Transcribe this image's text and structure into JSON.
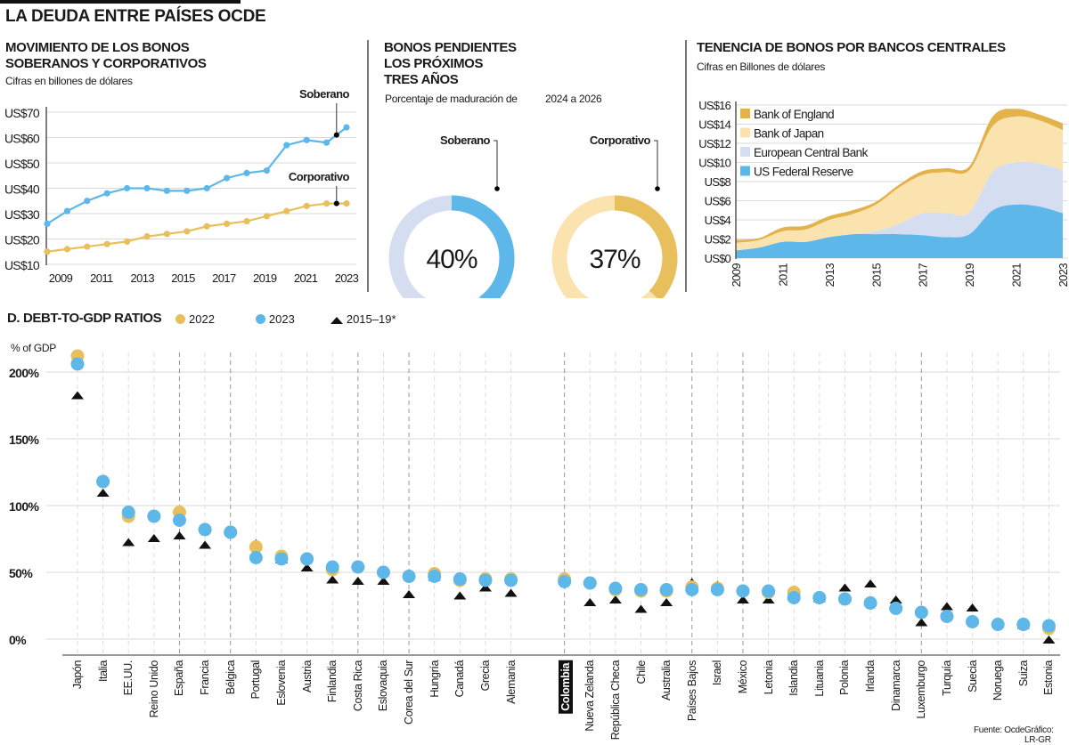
{
  "title": "LA DEUDA ENTRE PAÍSES OCDE",
  "colors": {
    "blue": "#5db7e8",
    "yellow": "#e8bf5c",
    "light_yellow": "#fbe3b0",
    "lavender": "#d5ddf0",
    "boe": "#e3b24a",
    "grid": "#d9d9d9",
    "text": "#1a1a1a"
  },
  "panel_a": {
    "title_line1": "MOVIMIENTO DE LOS BONOS",
    "title_line2": "SOBERANOS Y CORPORATIVOS",
    "subtitle": "Cifras en billones de dólares"
  },
  "panel_b": {
    "title_line1": "BONOS PENDIENTES",
    "title_line2": "LOS PRÓXIMOS",
    "title_line3": "TRES AÑOS",
    "subtitle_left": "Porcentaje de maduración de",
    "subtitle_right": "2024 a 2026"
  },
  "panel_c": {
    "title": "TENENCIA DE BONOS POR BANCOS CENTRALES",
    "subtitle": "Cifras en Billones de dólares"
  },
  "panel_d": {
    "title": "D. DEBT-TO-GDP RATIOS"
  },
  "footer": {
    "source": "Fuente: Ocde",
    "credit": "Gráfico: LR-GR"
  },
  "chart_data": [
    {
      "type": "line",
      "x": [
        2008,
        2009,
        2010,
        2011,
        2012,
        2013,
        2014,
        2015,
        2016,
        2017,
        2018,
        2019,
        2020,
        2021,
        2022,
        2023
      ],
      "series": [
        {
          "name": "Soberano",
          "values": [
            26,
            31,
            35,
            38,
            40,
            40,
            39,
            39,
            40,
            44,
            46,
            47,
            57,
            59,
            58,
            64
          ]
        },
        {
          "name": "Corporativo",
          "values": [
            15,
            16,
            17,
            18,
            19,
            21,
            22,
            23,
            25,
            26,
            27,
            29,
            31,
            33,
            34,
            34
          ]
        }
      ],
      "ylim": [
        10,
        70
      ],
      "ytick_labels": [
        "US$10",
        "US$20",
        "US$30",
        "US$40",
        "US$50",
        "US$60",
        "US$70"
      ],
      "xtick_labels": [
        "2009",
        "2011",
        "2013",
        "2015",
        "2017",
        "2019",
        "2021",
        "2023"
      ],
      "grid": true
    },
    {
      "type": "pie",
      "label": "Soberano",
      "value_label": "40%",
      "values": [
        40,
        60
      ]
    },
    {
      "type": "pie",
      "label": "Corporativo",
      "value_label": "37%",
      "values": [
        37,
        63
      ]
    },
    {
      "type": "area",
      "stacked": true,
      "x": [
        2009,
        2010,
        2011,
        2012,
        2013,
        2014,
        2015,
        2016,
        2017,
        2018,
        2019,
        2020,
        2021,
        2022,
        2023
      ],
      "series": [
        {
          "name": "US Federal Reserve",
          "values": [
            0.8,
            1.1,
            1.7,
            1.7,
            2.2,
            2.5,
            2.5,
            2.5,
            2.4,
            2.2,
            2.5,
            5.0,
            5.6,
            5.4,
            4.7
          ]
        },
        {
          "name": "European Central Bank",
          "values": [
            0,
            0,
            0,
            0,
            0,
            0,
            0.3,
            1.1,
            2.3,
            2.5,
            2.3,
            4.0,
            4.4,
            4.5,
            4.5
          ]
        },
        {
          "name": "Bank of Japan",
          "values": [
            0.8,
            0.8,
            1.1,
            1.3,
            1.8,
            2.1,
            2.8,
            3.8,
            4.0,
            4.3,
            4.4,
            4.8,
            4.8,
            4.5,
            4.2
          ]
        },
        {
          "name": "Bank of England",
          "values": [
            0.3,
            0.2,
            0.4,
            0.4,
            0.4,
            0.4,
            0.3,
            0.3,
            0.4,
            0.4,
            0.4,
            1.0,
            0.8,
            0.6,
            0.7
          ]
        }
      ],
      "legend_order": [
        "Bank of England",
        "Bank of Japan",
        "European Central Bank",
        "US Federal Reserve"
      ],
      "ylim": [
        0,
        16
      ],
      "ytick_labels": [
        "US$0",
        "US$2",
        "US$4",
        "US$6",
        "US$8",
        "US$10",
        "US$12",
        "US$14",
        "US$16"
      ],
      "xtick_labels": [
        "2009",
        "2011",
        "2013",
        "2015",
        "2017",
        "2019",
        "2021",
        "2023"
      ],
      "legend": "top-left",
      "grid": true
    },
    {
      "type": "scatter",
      "ylabel": "% of GDP",
      "ylim": [
        0,
        200
      ],
      "ytick_labels": [
        "0%",
        "50%",
        "100%",
        "150%",
        "200%"
      ],
      "series_names": [
        "2022",
        "2023",
        "2015–19*"
      ],
      "highlight": "Colombia",
      "categories": [
        "Japón",
        "Italia",
        "EE.UU.",
        "Reino Unido",
        "España",
        "Francia",
        "Bélgica",
        "Portugal",
        "Eslovenia",
        "Austria",
        "Finlandia",
        "Costa Rica",
        "Eslovaquia",
        "Corea del Sur",
        "Hungría",
        "Canadá",
        "Grecia",
        "Alemania",
        "Colombia",
        "Nueva Zelanda",
        "República Checa",
        "Chile",
        "Australia",
        "Países Bajos",
        "Israel",
        "México",
        "Letonia",
        "Islandia",
        "Lituania",
        "Polonia",
        "Irlanda",
        "Dinamarca",
        "Luxemburgo",
        "Turquía",
        "Suecia",
        "Noruega",
        "Suiza",
        "Estonia"
      ],
      "v2022": [
        212,
        118,
        92,
        92,
        95,
        82,
        80,
        69,
        62,
        60,
        52,
        54,
        50,
        47,
        49,
        44,
        45,
        45,
        45,
        42,
        37,
        36,
        36,
        39,
        38,
        36,
        35,
        35,
        31,
        30,
        27,
        23,
        20,
        17,
        13,
        11,
        11,
        8
      ],
      "v2023": [
        206,
        118,
        95,
        92,
        89,
        82,
        80,
        61,
        60,
        60,
        54,
        54,
        50,
        47,
        47,
        45,
        44,
        44,
        43,
        42,
        38,
        37,
        37,
        37,
        37,
        36,
        36,
        31,
        31,
        30,
        27,
        23,
        20,
        17,
        13,
        11,
        11,
        10
      ],
      "v2015_19": [
        183,
        110,
        73,
        76,
        78,
        71,
        82,
        72,
        60,
        54,
        45,
        44,
        44,
        34,
        47,
        33,
        39,
        35,
        45,
        28,
        30,
        23,
        28,
        43,
        41,
        30,
        30,
        36,
        31,
        39,
        42,
        30,
        13,
        25,
        24,
        12,
        11,
        0
      ],
      "dark_guides": [
        "España",
        "Bélgica",
        "Costa Rica",
        "Corea del Sur",
        "Colombia",
        "Países Bajos",
        "México",
        "Luxemburgo"
      ]
    }
  ]
}
